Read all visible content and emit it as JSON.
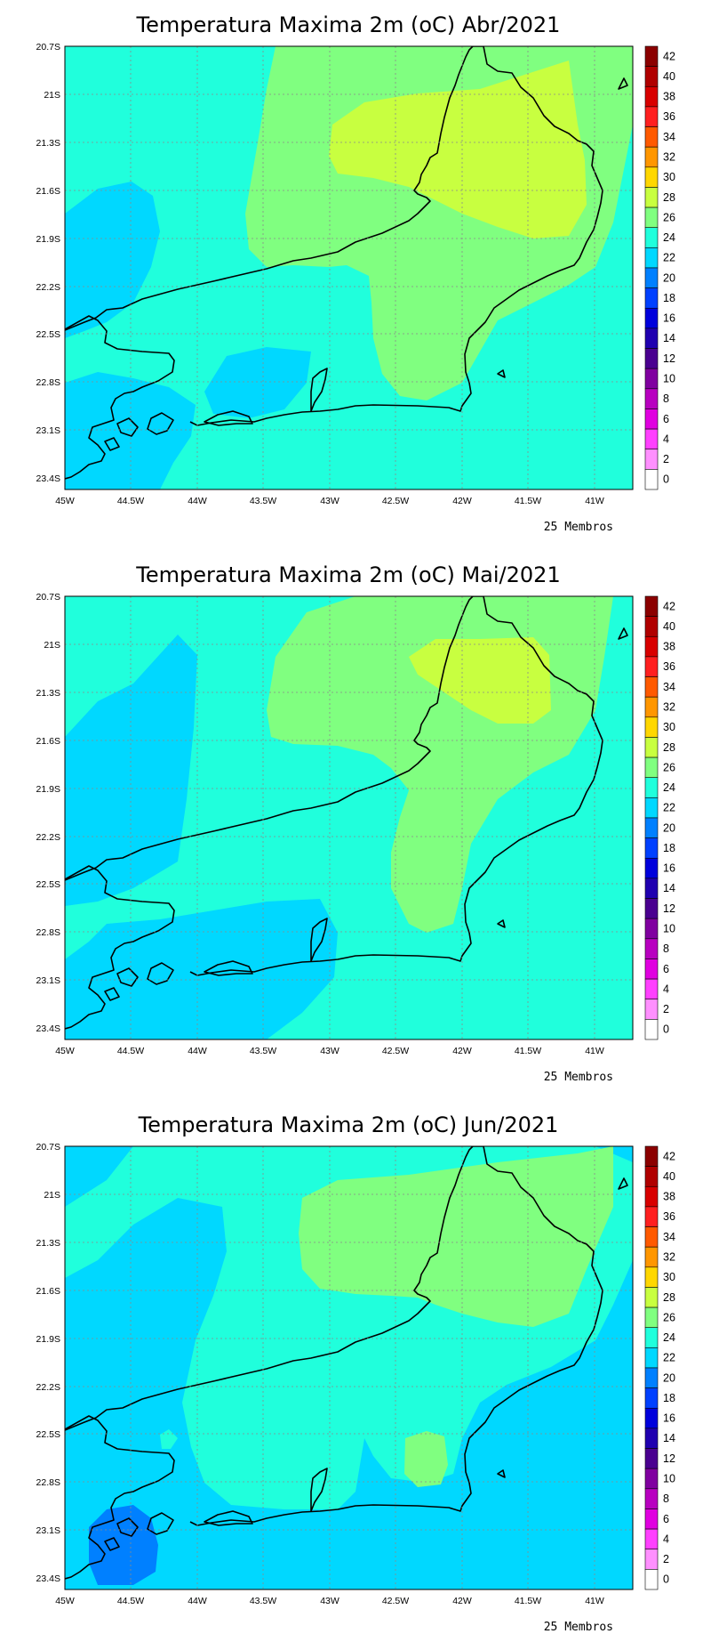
{
  "maps": [
    {
      "title": "Temperatura Maxima 2m (oC) Abr/2021",
      "footer": "25 Membros"
    },
    {
      "title": "Temperatura Maxima 2m (oC) Mai/2021",
      "footer": "25 Membros"
    },
    {
      "title": "Temperatura Maxima 2m (oC) Jun/2021",
      "footer": "25 Membros"
    }
  ],
  "lat_ticks": [
    "20.7S",
    "21S",
    "21.3S",
    "21.6S",
    "21.9S",
    "22.2S",
    "22.5S",
    "22.8S",
    "23.1S",
    "23.4S"
  ],
  "lon_ticks": [
    "45W",
    "44.5W",
    "44W",
    "43.5W",
    "43W",
    "42.5W",
    "42W",
    "41.5W",
    "41W"
  ],
  "legend": {
    "labels": [
      "42",
      "40",
      "38",
      "36",
      "34",
      "32",
      "30",
      "28",
      "26",
      "24",
      "22",
      "20",
      "18",
      "16",
      "14",
      "12",
      "10",
      "8",
      "6",
      "4",
      "2",
      "0"
    ],
    "colors": [
      "#8b0000",
      "#b00000",
      "#d80000",
      "#ff2020",
      "#ff5a00",
      "#ff9600",
      "#ffd700",
      "#c8ff40",
      "#80ff80",
      "#20ffdc",
      "#00d8ff",
      "#0080ff",
      "#0040ff",
      "#0000dc",
      "#2000b0",
      "#4a0090",
      "#8000a0",
      "#b800c0",
      "#e000e0",
      "#ff40ff",
      "#ff90ff",
      "#ffffff"
    ]
  },
  "field_colors": {
    "c22": "#0080ff",
    "c24": "#00d8ff",
    "c26": "#20ffdc",
    "c28": "#80ff80",
    "c30": "#c8ff40"
  }
}
